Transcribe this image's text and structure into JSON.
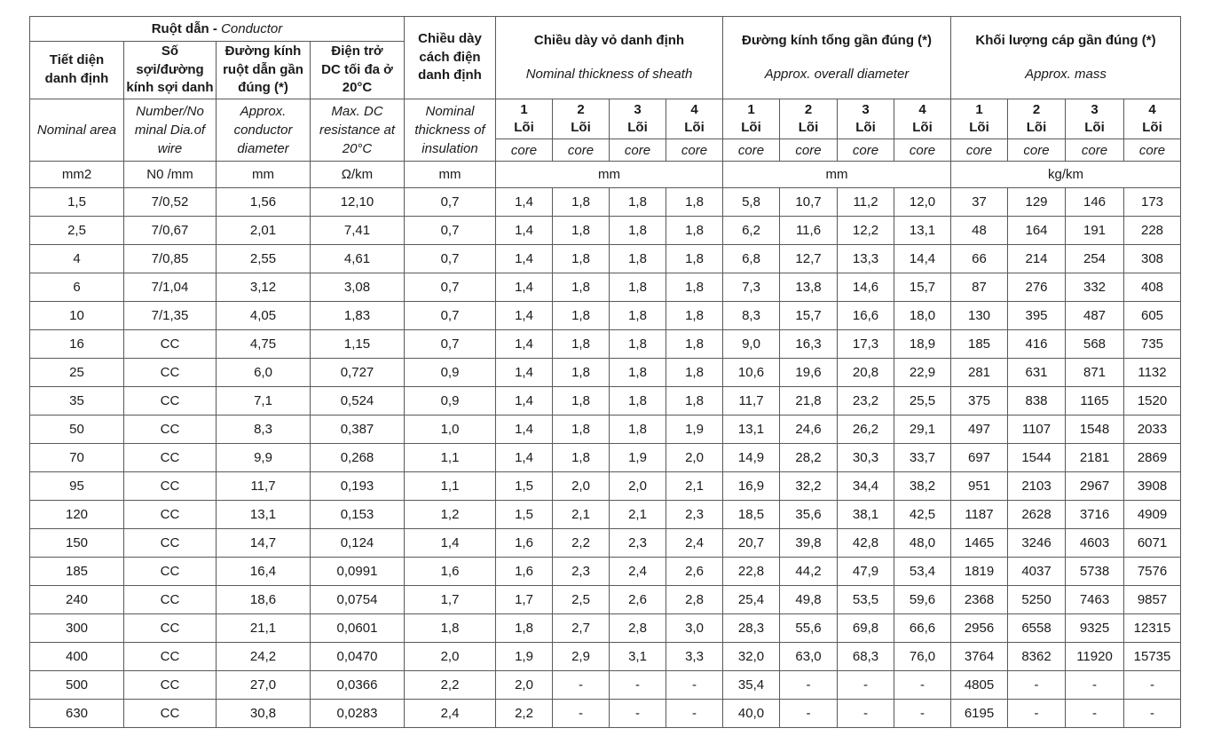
{
  "page": {
    "background": "#ffffff",
    "border_color": "#595959",
    "text_color": "#1a1a1a"
  },
  "table": {
    "conductor_group": {
      "vi": "Ruột dẫn",
      "sep": " - ",
      "en": "Conductor"
    },
    "col_headers": {
      "nominal_area": {
        "vi": "Tiết diện\ndanh định",
        "en": "Nominal area",
        "unit": "mm2"
      },
      "wire": {
        "vi": "Số\nsợi/đường\nkính sợi danh",
        "en": "Number/No\nminal Dia.of\nwire",
        "unit": "N0 /mm"
      },
      "conductor_diameter": {
        "vi": "Đường kính\nruột dẫn gần\nđúng (*)",
        "en": "Approx.\nconductor\ndiameter",
        "unit": "mm"
      },
      "dc_resistance": {
        "vi": "Điện trở\nDC tối đa ở\n20°C",
        "en": "Max. DC\nresistance at\n20°C",
        "unit": "Ω/km"
      },
      "insulation": {
        "vi": "Chiều dày\ncách điện\ndanh định",
        "en": "Nominal\nthickness of\ninsulation",
        "unit": "mm"
      }
    },
    "groups": {
      "sheath": {
        "vi": "Chiều dày vỏ danh định",
        "en": "Nominal thickness of sheath",
        "unit": "mm"
      },
      "overall_diameter": {
        "vi": "Đường kính tổng gần đúng (*)",
        "en": "Approx. overall diameter",
        "unit": "mm"
      },
      "mass": {
        "vi": "Khối lượng cáp gần đúng (*)",
        "en": "Approx. mass",
        "unit": "kg/km"
      }
    },
    "core_numbers": [
      "1",
      "2",
      "3",
      "4"
    ],
    "core_word_vi": "Lõi",
    "core_word_en": "core",
    "rows": [
      [
        "1,5",
        "7/0,52",
        "1,56",
        "12,10",
        "0,7",
        "1,4",
        "1,8",
        "1,8",
        "1,8",
        "5,8",
        "10,7",
        "11,2",
        "12,0",
        "37",
        "129",
        "146",
        "173"
      ],
      [
        "2,5",
        "7/0,67",
        "2,01",
        "7,41",
        "0,7",
        "1,4",
        "1,8",
        "1,8",
        "1,8",
        "6,2",
        "11,6",
        "12,2",
        "13,1",
        "48",
        "164",
        "191",
        "228"
      ],
      [
        "4",
        "7/0,85",
        "2,55",
        "4,61",
        "0,7",
        "1,4",
        "1,8",
        "1,8",
        "1,8",
        "6,8",
        "12,7",
        "13,3",
        "14,4",
        "66",
        "214",
        "254",
        "308"
      ],
      [
        "6",
        "7/1,04",
        "3,12",
        "3,08",
        "0,7",
        "1,4",
        "1,8",
        "1,8",
        "1,8",
        "7,3",
        "13,8",
        "14,6",
        "15,7",
        "87",
        "276",
        "332",
        "408"
      ],
      [
        "10",
        "7/1,35",
        "4,05",
        "1,83",
        "0,7",
        "1,4",
        "1,8",
        "1,8",
        "1,8",
        "8,3",
        "15,7",
        "16,6",
        "18,0",
        "130",
        "395",
        "487",
        "605"
      ],
      [
        "16",
        "CC",
        "4,75",
        "1,15",
        "0,7",
        "1,4",
        "1,8",
        "1,8",
        "1,8",
        "9,0",
        "16,3",
        "17,3",
        "18,9",
        "185",
        "416",
        "568",
        "735"
      ],
      [
        "25",
        "CC",
        "6,0",
        "0,727",
        "0,9",
        "1,4",
        "1,8",
        "1,8",
        "1,8",
        "10,6",
        "19,6",
        "20,8",
        "22,9",
        "281",
        "631",
        "871",
        "1132"
      ],
      [
        "35",
        "CC",
        "7,1",
        "0,524",
        "0,9",
        "1,4",
        "1,8",
        "1,8",
        "1,8",
        "11,7",
        "21,8",
        "23,2",
        "25,5",
        "375",
        "838",
        "1165",
        "1520"
      ],
      [
        "50",
        "CC",
        "8,3",
        "0,387",
        "1,0",
        "1,4",
        "1,8",
        "1,8",
        "1,9",
        "13,1",
        "24,6",
        "26,2",
        "29,1",
        "497",
        "1107",
        "1548",
        "2033"
      ],
      [
        "70",
        "CC",
        "9,9",
        "0,268",
        "1,1",
        "1,4",
        "1,8",
        "1,9",
        "2,0",
        "14,9",
        "28,2",
        "30,3",
        "33,7",
        "697",
        "1544",
        "2181",
        "2869"
      ],
      [
        "95",
        "CC",
        "11,7",
        "0,193",
        "1,1",
        "1,5",
        "2,0",
        "2,0",
        "2,1",
        "16,9",
        "32,2",
        "34,4",
        "38,2",
        "951",
        "2103",
        "2967",
        "3908"
      ],
      [
        "120",
        "CC",
        "13,1",
        "0,153",
        "1,2",
        "1,5",
        "2,1",
        "2,1",
        "2,3",
        "18,5",
        "35,6",
        "38,1",
        "42,5",
        "1187",
        "2628",
        "3716",
        "4909"
      ],
      [
        "150",
        "CC",
        "14,7",
        "0,124",
        "1,4",
        "1,6",
        "2,2",
        "2,3",
        "2,4",
        "20,7",
        "39,8",
        "42,8",
        "48,0",
        "1465",
        "3246",
        "4603",
        "6071"
      ],
      [
        "185",
        "CC",
        "16,4",
        "0,0991",
        "1,6",
        "1,6",
        "2,3",
        "2,4",
        "2,6",
        "22,8",
        "44,2",
        "47,9",
        "53,4",
        "1819",
        "4037",
        "5738",
        "7576"
      ],
      [
        "240",
        "CC",
        "18,6",
        "0,0754",
        "1,7",
        "1,7",
        "2,5",
        "2,6",
        "2,8",
        "25,4",
        "49,8",
        "53,5",
        "59,6",
        "2368",
        "5250",
        "7463",
        "9857"
      ],
      [
        "300",
        "CC",
        "21,1",
        "0,0601",
        "1,8",
        "1,8",
        "2,7",
        "2,8",
        "3,0",
        "28,3",
        "55,6",
        "69,8",
        "66,6",
        "2956",
        "6558",
        "9325",
        "12315"
      ],
      [
        "400",
        "CC",
        "24,2",
        "0,0470",
        "2,0",
        "1,9",
        "2,9",
        "3,1",
        "3,3",
        "32,0",
        "63,0",
        "68,3",
        "76,0",
        "3764",
        "8362",
        "11920",
        "15735"
      ],
      [
        "500",
        "CC",
        "27,0",
        "0,0366",
        "2,2",
        "2,0",
        "-",
        "-",
        "-",
        "35,4",
        "-",
        "-",
        "-",
        "4805",
        "-",
        "-",
        "-"
      ],
      [
        "630",
        "CC",
        "30,8",
        "0,0283",
        "2,4",
        "2,2",
        "-",
        "-",
        "-",
        "40,0",
        "-",
        "-",
        "-",
        "6195",
        "-",
        "-",
        "-"
      ]
    ]
  }
}
